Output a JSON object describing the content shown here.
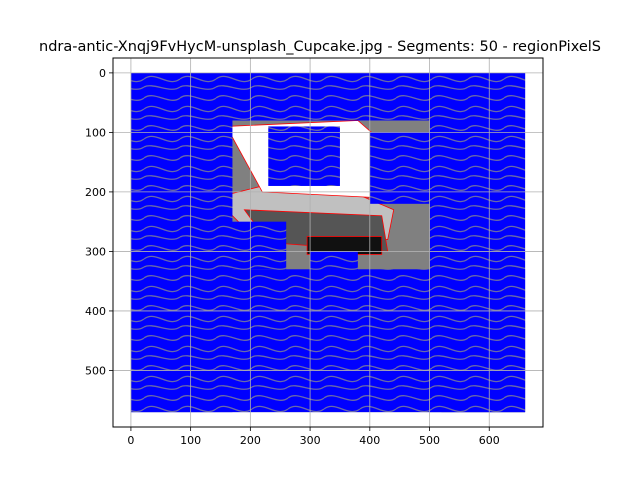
{
  "chart_data": {
    "type": "image",
    "title": "ndra-antic-Xnqj9FvHycM-unsplash_Cupcake.jpg - Segments: 50 - regionPixelS",
    "xlabel": "",
    "ylabel": "",
    "xlim": [
      -30,
      690
    ],
    "ylim": [
      595,
      -25
    ],
    "y_inverted": true,
    "grid": true,
    "image_extent": {
      "width": 660,
      "height": 570
    },
    "x_ticks": [
      0,
      100,
      200,
      300,
      400,
      500,
      600
    ],
    "y_ticks": [
      0,
      100,
      200,
      300,
      400,
      500
    ],
    "x_tick_labels": [
      "0",
      "100",
      "200",
      "300",
      "400",
      "500",
      "600"
    ],
    "y_tick_labels": [
      "0",
      "100",
      "200",
      "300",
      "400",
      "500"
    ],
    "overlay": {
      "description_free": true,
      "fill_color": "#0000ff",
      "boundary_color": "#ff0000"
    },
    "regions": [
      {
        "shade": "#808080"
      },
      {
        "shade": "#c0c0c0"
      },
      {
        "shade": "#ffffff"
      },
      {
        "shade": "#555555"
      },
      {
        "shade": "#111111"
      }
    ]
  },
  "colors": {
    "background": "#ffffff",
    "axes_edge": "#000000",
    "grid": "#b0b0b0",
    "stroke_blue": "#0000ff",
    "boundary_red": "#ff0000"
  }
}
